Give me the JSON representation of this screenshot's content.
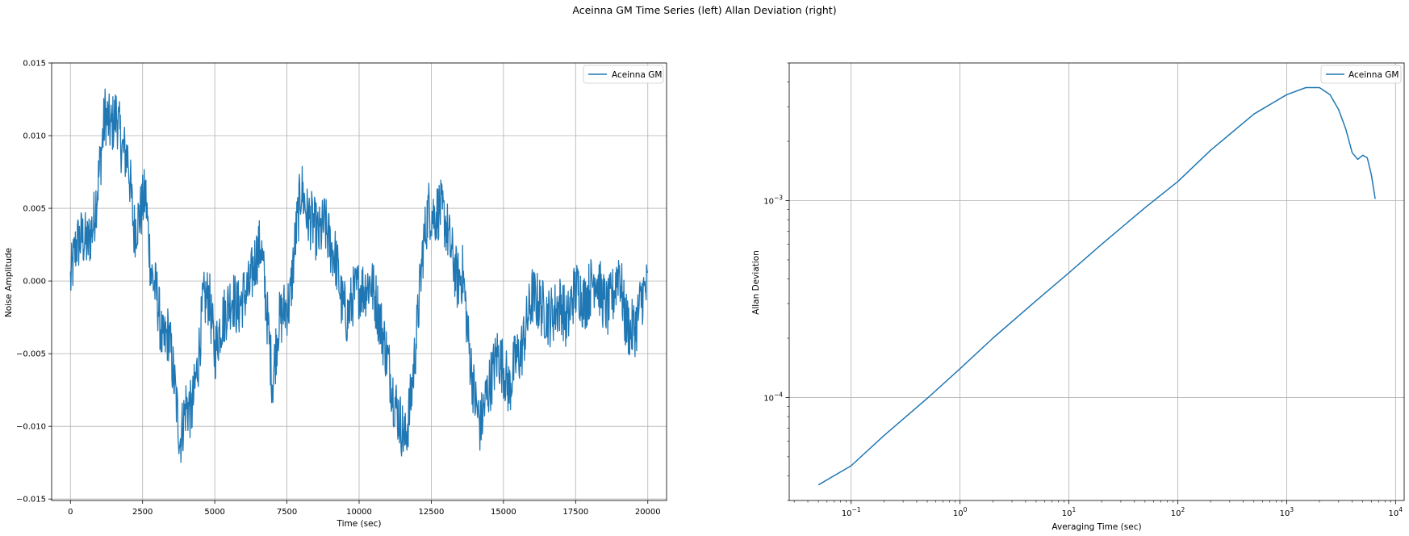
{
  "figure": {
    "suptitle": "Aceinna GM Time Series (left) Allan Deviation (right)"
  },
  "chart_data": [
    {
      "type": "line",
      "title": "",
      "xlabel": "Time (sec)",
      "ylabel": "Noise Amplitude",
      "xlim": [
        -650,
        20650
      ],
      "ylim": [
        -0.0151,
        0.015
      ],
      "grid": true,
      "legend_position": "top-right",
      "xticks": [
        0,
        2500,
        5000,
        7500,
        10000,
        12500,
        15000,
        17500,
        20000
      ],
      "xtick_labels": [
        "0",
        "2500",
        "5000",
        "7500",
        "10000",
        "12500",
        "15000",
        "17500",
        "20000"
      ],
      "yticks": [
        -0.015,
        -0.01,
        -0.005,
        0.0,
        0.005,
        0.01,
        0.015
      ],
      "ytick_labels": [
        "−0.015",
        "−0.010",
        "−0.005",
        "0.000",
        "0.005",
        "0.010",
        "0.015"
      ],
      "series": [
        {
          "name": "Aceinna GM",
          "color": "#1f77b4",
          "x": [
            0,
            200,
            400,
            600,
            800,
            1000,
            1200,
            1400,
            1600,
            1800,
            2000,
            2200,
            2400,
            2600,
            2800,
            3000,
            3200,
            3400,
            3600,
            3800,
            4000,
            4200,
            4400,
            4600,
            4800,
            5000,
            5200,
            5400,
            5600,
            5800,
            6000,
            6200,
            6400,
            6600,
            6800,
            7000,
            7200,
            7400,
            7600,
            7800,
            8000,
            8200,
            8400,
            8600,
            8800,
            9000,
            9200,
            9400,
            9600,
            9800,
            10000,
            10200,
            10400,
            10600,
            10800,
            11000,
            11200,
            11400,
            11600,
            11800,
            12000,
            12200,
            12400,
            12600,
            12800,
            13000,
            13200,
            13400,
            13600,
            13800,
            14000,
            14200,
            14400,
            14600,
            14800,
            15000,
            15200,
            15400,
            15600,
            15800,
            16000,
            16200,
            16400,
            16600,
            16800,
            17000,
            17200,
            17400,
            17600,
            17800,
            18000,
            18200,
            18400,
            18600,
            18800,
            19000,
            19200,
            19400,
            19600,
            19800,
            20000
          ],
          "y": [
            0.0,
            0.0025,
            0.003,
            0.0025,
            0.004,
            0.0075,
            0.0115,
            0.0105,
            0.0115,
            0.009,
            0.0085,
            0.0035,
            0.0045,
            0.006,
            0.0005,
            -0.001,
            -0.0045,
            -0.0035,
            -0.007,
            -0.011,
            -0.0085,
            -0.009,
            -0.006,
            -0.0015,
            -0.001,
            -0.005,
            -0.003,
            -0.002,
            -0.001,
            -0.002,
            -0.001,
            -0.0005,
            0.0015,
            0.0025,
            -0.002,
            -0.007,
            -0.003,
            -0.002,
            -0.0015,
            0.003,
            0.0065,
            0.0045,
            0.004,
            0.003,
            0.004,
            0.0025,
            0.0015,
            -0.0015,
            -0.0025,
            -0.001,
            -0.0005,
            -0.0005,
            0.0,
            -0.0015,
            -0.0035,
            -0.0055,
            -0.008,
            -0.0095,
            -0.011,
            -0.008,
            -0.0035,
            0.002,
            0.005,
            0.0045,
            0.005,
            0.004,
            0.002,
            0.0,
            0.0005,
            -0.0045,
            -0.008,
            -0.01,
            -0.008,
            -0.0065,
            -0.005,
            -0.006,
            -0.0075,
            -0.0055,
            -0.005,
            -0.003,
            -0.001,
            -0.0015,
            -0.002,
            -0.0025,
            -0.002,
            -0.0015,
            -0.003,
            -0.001,
            -0.0005,
            -0.0015,
            -0.0005,
            0.0005,
            -0.001,
            -0.002,
            -0.001,
            0.001,
            -0.0025,
            -0.0035,
            -0.003,
            -0.001,
            -0.0005
          ]
        }
      ]
    },
    {
      "type": "line",
      "title": "",
      "xlabel": "Averaging Time (sec)",
      "ylabel": "Allan Deviation",
      "x_scale": "log",
      "y_scale": "log",
      "xlim": [
        0.027,
        12000
      ],
      "ylim": [
        3e-05,
        0.005
      ],
      "grid": true,
      "legend_position": "top-right",
      "xticks": [
        0.1,
        1,
        10,
        100,
        1000,
        10000
      ],
      "xtick_labels": [
        [
          "10",
          "−1"
        ],
        [
          "10",
          "0"
        ],
        [
          "10",
          "1"
        ],
        [
          "10",
          "2"
        ],
        [
          "10",
          "3"
        ],
        [
          "10",
          "4"
        ]
      ],
      "yticks": [
        0.0001,
        0.001
      ],
      "ytick_labels": [
        [
          "10",
          "−4"
        ],
        [
          "10",
          "−3"
        ]
      ],
      "series": [
        {
          "name": "Aceinna GM",
          "color": "#1f77b4",
          "x": [
            0.05,
            0.1,
            0.2,
            0.5,
            1,
            2,
            5,
            10,
            20,
            50,
            100,
            200,
            500,
            1000,
            1500,
            2000,
            2500,
            3000,
            3500,
            4000,
            4500,
            5000,
            5500,
            6000,
            6500
          ],
          "y": [
            3.6e-05,
            4.5e-05,
            6.4e-05,
            9.9e-05,
            0.00014,
            0.0002,
            0.00031,
            0.00043,
            0.0006,
            0.00092,
            0.00125,
            0.0018,
            0.00275,
            0.00345,
            0.00375,
            0.00375,
            0.00345,
            0.0029,
            0.0023,
            0.00175,
            0.00162,
            0.0017,
            0.00165,
            0.00135,
            0.00102
          ]
        }
      ]
    }
  ]
}
